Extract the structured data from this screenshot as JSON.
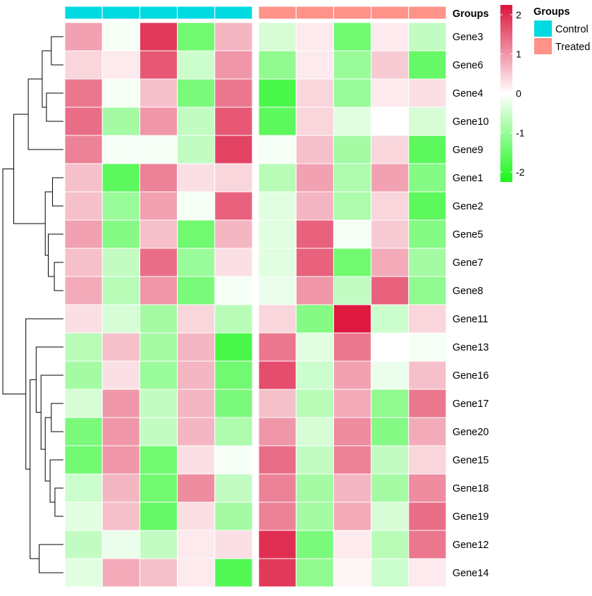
{
  "chart_data": {
    "type": "heatmap",
    "color_scale": {
      "low": "#1BF51B",
      "mid": "#FFFFFF",
      "high": "#DC143C",
      "min": -2.25,
      "max": 2.25,
      "ticks": [
        -2,
        -1,
        0,
        1,
        2
      ],
      "tick_labels": [
        "-2",
        "-1",
        "0",
        "1",
        "2"
      ]
    },
    "columns": {
      "groups": [
        "Control",
        "Control",
        "Control",
        "Control",
        "Control",
        "Treated",
        "Treated",
        "Treated",
        "Treated",
        "Treated"
      ]
    },
    "rows": [
      {
        "name": "Gene3",
        "values": [
          0.9,
          -0.1,
          1.9,
          -1.4,
          0.7,
          -0.4,
          0.2,
          -1.4,
          0.2,
          -0.6
        ]
      },
      {
        "name": "Gene6",
        "values": [
          0.4,
          0.2,
          1.6,
          -0.5,
          1.0,
          -1.1,
          0.2,
          -1.0,
          0.5,
          -1.5
        ]
      },
      {
        "name": "Gene4",
        "values": [
          1.3,
          -0.1,
          0.6,
          -1.3,
          1.3,
          -1.8,
          0.4,
          -1.0,
          0.2,
          0.3
        ]
      },
      {
        "name": "Gene10",
        "values": [
          1.4,
          -0.9,
          1.0,
          -0.6,
          1.6,
          -1.6,
          0.4,
          -0.3,
          0.0,
          -0.4
        ]
      },
      {
        "name": "Gene9",
        "values": [
          1.2,
          -0.1,
          -0.1,
          -0.6,
          1.8,
          -0.1,
          0.6,
          -0.9,
          0.4,
          -1.6
        ]
      },
      {
        "name": "Gene1",
        "values": [
          0.6,
          -1.6,
          1.2,
          0.3,
          0.4,
          -0.7,
          0.9,
          -0.8,
          0.9,
          -1.2
        ]
      },
      {
        "name": "Gene2",
        "values": [
          0.6,
          -1.0,
          0.9,
          -0.1,
          1.5,
          -0.3,
          0.7,
          -0.8,
          0.4,
          -1.6
        ]
      },
      {
        "name": "Gene5",
        "values": [
          0.9,
          -1.2,
          0.6,
          -1.4,
          0.7,
          -0.3,
          1.5,
          -0.1,
          0.5,
          -1.2
        ]
      },
      {
        "name": "Gene7",
        "values": [
          0.6,
          -0.6,
          1.4,
          -1.0,
          0.3,
          -0.3,
          1.5,
          -1.4,
          0.8,
          -0.9
        ]
      },
      {
        "name": "Gene8",
        "values": [
          0.8,
          -0.7,
          1.0,
          -1.3,
          -0.1,
          -0.2,
          1.0,
          -0.6,
          1.5,
          -1.1
        ]
      },
      {
        "name": "Gene11",
        "values": [
          0.3,
          -0.4,
          -0.9,
          0.4,
          -0.7,
          0.4,
          -1.2,
          2.2,
          -0.5,
          0.4
        ]
      },
      {
        "name": "Gene13",
        "values": [
          -0.7,
          0.6,
          -0.9,
          0.7,
          -1.8,
          1.3,
          -0.3,
          1.3,
          0.0,
          -0.1
        ]
      },
      {
        "name": "Gene16",
        "values": [
          -0.9,
          0.3,
          -1.0,
          0.7,
          -1.4,
          1.7,
          -0.5,
          0.9,
          -0.2,
          0.6
        ]
      },
      {
        "name": "Gene17",
        "values": [
          -0.4,
          1.0,
          -0.6,
          0.7,
          -1.3,
          0.6,
          -0.7,
          0.8,
          -1.1,
          1.3
        ]
      },
      {
        "name": "Gene20",
        "values": [
          -1.3,
          1.0,
          -0.6,
          0.7,
          -0.8,
          1.0,
          -0.4,
          1.1,
          -1.2,
          0.8
        ]
      },
      {
        "name": "Gene15",
        "values": [
          -1.4,
          1.0,
          -1.4,
          0.3,
          -0.1,
          1.4,
          -0.6,
          1.2,
          -0.6,
          0.4
        ]
      },
      {
        "name": "Gene18",
        "values": [
          -0.5,
          0.7,
          -1.4,
          1.1,
          -0.6,
          1.2,
          -0.9,
          0.7,
          -0.9,
          1.1
        ]
      },
      {
        "name": "Gene19",
        "values": [
          -0.3,
          0.6,
          -1.5,
          0.3,
          -0.9,
          1.2,
          -0.9,
          0.8,
          -0.4,
          1.4
        ]
      },
      {
        "name": "Gene12",
        "values": [
          -0.6,
          -0.2,
          -0.6,
          0.2,
          0.3,
          2.0,
          -1.3,
          0.2,
          -0.7,
          1.3
        ]
      },
      {
        "name": "Gene14",
        "values": [
          -0.3,
          0.8,
          0.6,
          0.2,
          -1.7,
          1.9,
          -1.1,
          0.1,
          -0.5,
          0.2
        ]
      }
    ],
    "annotation": {
      "title": "Groups",
      "legend_entries": [
        {
          "label": "Control",
          "color": "#00DAE0"
        },
        {
          "label": "Treated",
          "color": "#FF9289"
        }
      ]
    },
    "dendrogram": {
      "orientation": "rows",
      "description": "Row clustering tree drawn on the left side"
    }
  }
}
